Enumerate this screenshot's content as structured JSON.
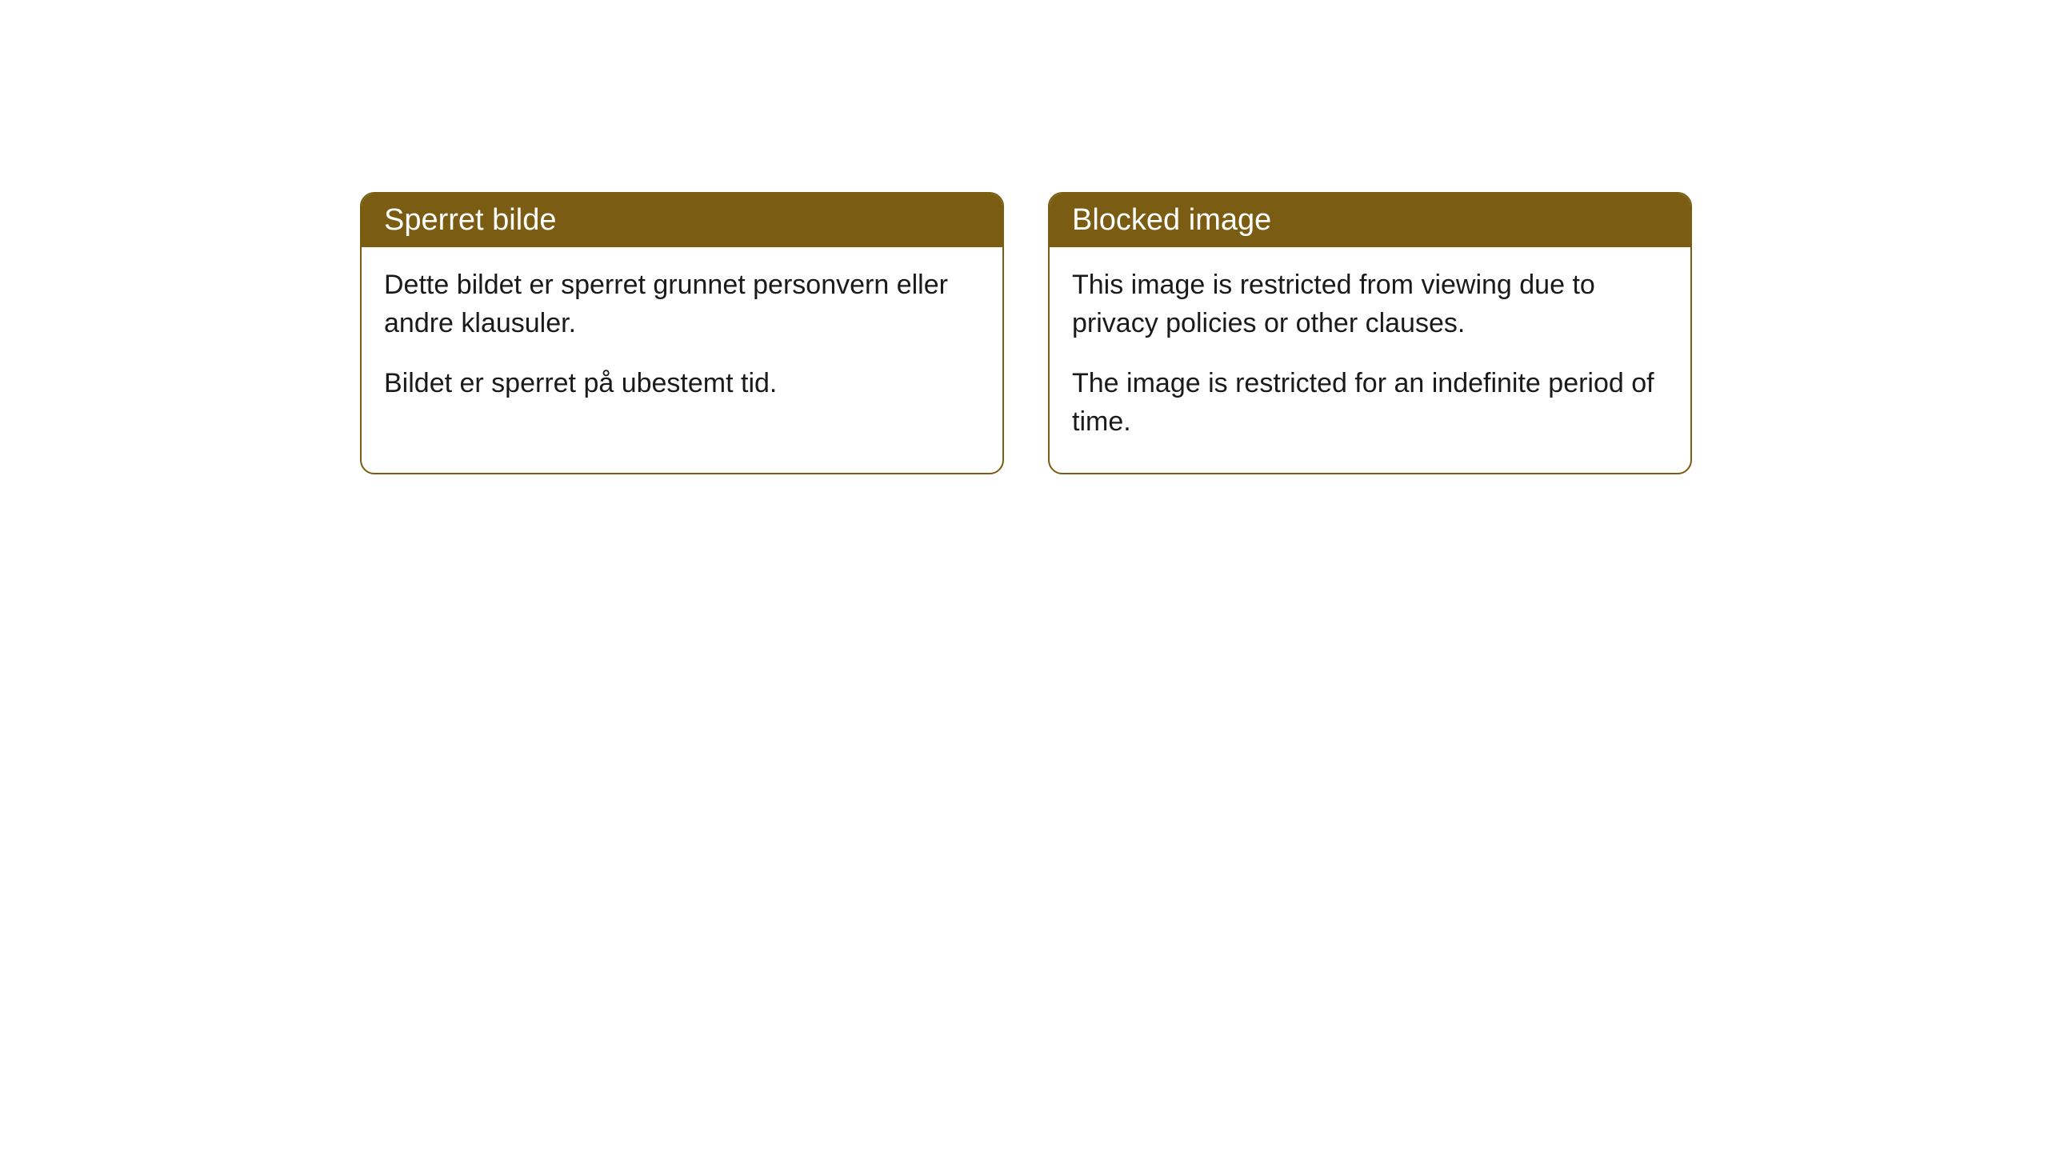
{
  "cards": [
    {
      "title": "Sperret bilde",
      "paragraph1": "Dette bildet er sperret grunnet personvern eller andre klausuler.",
      "paragraph2": "Bildet er sperret på ubestemt tid."
    },
    {
      "title": "Blocked image",
      "paragraph1": "This image is restricted from viewing due to privacy policies or other clauses.",
      "paragraph2": "The image is restricted for an indefinite period of time."
    }
  ],
  "style": {
    "header_bg_color": "#7a5d12",
    "header_text_color": "#ffffff",
    "border_color": "#7a5d12",
    "body_text_color": "#1a1a1a",
    "body_bg_color": "#ffffff",
    "border_radius": 18,
    "header_fontsize": 38,
    "body_fontsize": 34
  }
}
